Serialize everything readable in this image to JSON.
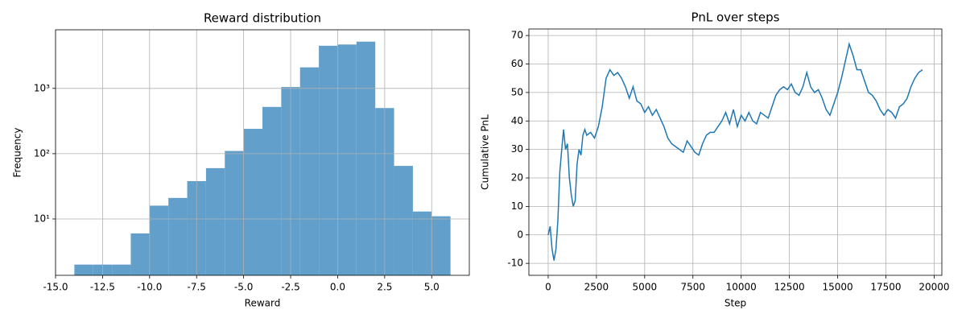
{
  "chart_data": [
    {
      "type": "histogram",
      "title": "Reward distribution",
      "x_label": "Reward",
      "y_label": "Frequency",
      "bins": [
        -14,
        -13,
        -12,
        -11,
        -10,
        -9,
        -8,
        -7,
        -6,
        -5,
        -4,
        -3,
        -2,
        -1,
        0,
        1,
        2,
        3,
        4,
        5,
        6
      ],
      "values": [
        2,
        2,
        2,
        6,
        16,
        21,
        38,
        60,
        110,
        240,
        520,
        1050,
        2100,
        4500,
        4700,
        5200,
        500,
        65,
        13,
        11
      ],
      "color": "#62a0cb",
      "log_y": true,
      "grid": true,
      "xlim": [
        -15,
        7
      ],
      "ylim": [
        1.37,
        7900
      ],
      "xticks": [
        {
          "value": -15,
          "label": "-15.0"
        },
        {
          "value": -12.5,
          "label": "-12.5"
        },
        {
          "value": -10,
          "label": "-10.0"
        },
        {
          "value": -7.5,
          "label": "-7.5"
        },
        {
          "value": -5,
          "label": "-5.0"
        },
        {
          "value": -2.5,
          "label": "-2.5"
        },
        {
          "value": 0,
          "label": "0.0"
        },
        {
          "value": 2.5,
          "label": "2.5"
        },
        {
          "value": 5,
          "label": "5.0"
        }
      ],
      "yticks": [
        {
          "value": 10,
          "label": "10¹"
        },
        {
          "value": 100,
          "label": "10²"
        },
        {
          "value": 1000,
          "label": "10³"
        }
      ]
    },
    {
      "type": "line",
      "title": "PnL over steps",
      "x_label": "Step",
      "y_label": "Cumulative PnL",
      "x": [
        0,
        100,
        200,
        300,
        400,
        500,
        600,
        700,
        800,
        900,
        1000,
        1100,
        1200,
        1300,
        1400,
        1500,
        1600,
        1700,
        1800,
        1900,
        2000,
        2200,
        2400,
        2600,
        2800,
        3000,
        3200,
        3400,
        3600,
        3800,
        4000,
        4200,
        4400,
        4600,
        4800,
        5000,
        5200,
        5400,
        5600,
        5800,
        6000,
        6200,
        6400,
        6600,
        6800,
        7000,
        7200,
        7400,
        7600,
        7800,
        8000,
        8200,
        8400,
        8600,
        8800,
        9000,
        9200,
        9400,
        9600,
        9800,
        10000,
        10200,
        10400,
        10600,
        10800,
        11000,
        11200,
        11400,
        11600,
        11800,
        12000,
        12200,
        12400,
        12600,
        12800,
        13000,
        13200,
        13400,
        13600,
        13800,
        14000,
        14200,
        14400,
        14600,
        14800,
        15000,
        15200,
        15400,
        15600,
        15800,
        16000,
        16200,
        16400,
        16600,
        16800,
        17000,
        17200,
        17400,
        17600,
        17800,
        18000,
        18200,
        18400,
        18600,
        18800,
        19000,
        19200,
        19400
      ],
      "series": [
        {
          "name": "PnL",
          "color": "#1f77b4",
          "values": [
            0,
            3,
            -5,
            -9,
            -5,
            5,
            22,
            30,
            37,
            30,
            32,
            20,
            14,
            10,
            12,
            25,
            30,
            28,
            35,
            37,
            35,
            36,
            34,
            38,
            45,
            55,
            58,
            56,
            57,
            55,
            52,
            48,
            52,
            47,
            46,
            43,
            45,
            42,
            44,
            41,
            38,
            34,
            32,
            31,
            30,
            29,
            33,
            31,
            29,
            28,
            32,
            35,
            36,
            36,
            38,
            40,
            43,
            39,
            44,
            38,
            42,
            40,
            43,
            40,
            39,
            43,
            42,
            41,
            45,
            49,
            51,
            52,
            51,
            53,
            50,
            49,
            52,
            57,
            52,
            50,
            51,
            48,
            44,
            42,
            46,
            50,
            55,
            61,
            67,
            63,
            58,
            58,
            54,
            50,
            49,
            47,
            44,
            42,
            44,
            43,
            41,
            45,
            46,
            48,
            52,
            55,
            57,
            58
          ]
        }
      ],
      "grid": true,
      "xlim": [
        -1000,
        20400
      ],
      "ylim": [
        -14.2,
        72.3
      ],
      "xticks": [
        0,
        2500,
        5000,
        7500,
        10000,
        12500,
        15000,
        17500,
        20000
      ],
      "yticks": [
        -10,
        0,
        10,
        20,
        30,
        40,
        50,
        60,
        70
      ]
    }
  ]
}
